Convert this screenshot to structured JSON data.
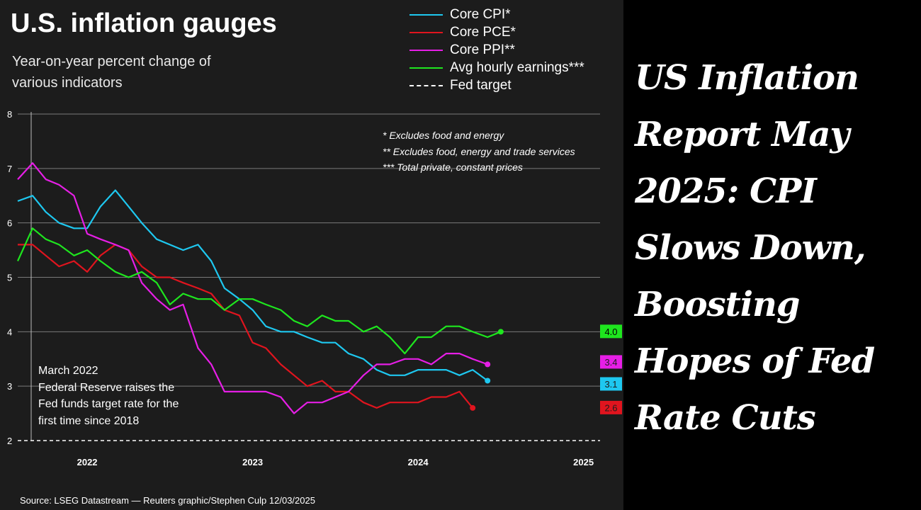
{
  "headline": "US Inflation Report May 2025: CPI Slows Down, Boosting Hopes of Fed Rate Cuts",
  "chart_data": {
    "type": "line",
    "title": "U.S. inflation gauges",
    "subtitle": "Year-on-year percent change of various indicators",
    "ylim": [
      2,
      8
    ],
    "yticks": [
      2,
      3,
      4,
      5,
      6,
      7,
      8
    ],
    "xlim": [
      2021.58,
      2025.1
    ],
    "xticks": [
      {
        "label": "2022",
        "value": 2022.0
      },
      {
        "label": "2023",
        "value": 2023.0
      },
      {
        "label": "2024",
        "value": 2024.0
      },
      {
        "label": "2025",
        "value": 2025.0
      }
    ],
    "grid": true,
    "legend_position": "top-right",
    "x": [
      2021.58,
      2021.67,
      2021.75,
      2021.83,
      2021.92,
      2022.0,
      2022.08,
      2022.17,
      2022.25,
      2022.33,
      2022.42,
      2022.5,
      2022.58,
      2022.67,
      2022.75,
      2022.83,
      2022.92,
      2023.0,
      2023.08,
      2023.17,
      2023.25,
      2023.33,
      2023.42,
      2023.5,
      2023.58,
      2023.67,
      2023.75,
      2023.83,
      2023.92,
      2024.0,
      2024.08,
      2024.17,
      2024.25,
      2024.33,
      2024.42,
      2024.5,
      2024.58,
      2024.67,
      2024.75,
      2024.83,
      2024.92
    ],
    "series": [
      {
        "name": "Core CPI*",
        "color": "#1ec8f0",
        "values": [
          6.4,
          6.5,
          6.2,
          6.0,
          5.9,
          5.9,
          6.3,
          6.6,
          6.3,
          6.0,
          5.7,
          5.6,
          5.5,
          5.6,
          5.3,
          4.8,
          4.6,
          4.4,
          4.1,
          4.0,
          4.0,
          3.9,
          3.8,
          3.8,
          3.6,
          3.5,
          3.3,
          3.2,
          3.2,
          3.3,
          3.3,
          3.3,
          3.2,
          3.3,
          3.1,
          null,
          null,
          null,
          null,
          null,
          null
        ],
        "end_label": "3.1"
      },
      {
        "name": "Core PCE*",
        "color": "#e0141e",
        "values": [
          5.6,
          5.6,
          5.4,
          5.2,
          5.3,
          5.1,
          5.4,
          5.6,
          5.5,
          5.2,
          5.0,
          5.0,
          4.9,
          4.8,
          4.7,
          4.4,
          4.3,
          3.8,
          3.7,
          3.4,
          3.2,
          3.0,
          3.1,
          2.9,
          2.9,
          2.7,
          2.6,
          2.7,
          2.7,
          2.7,
          2.8,
          2.8,
          2.9,
          2.6,
          null,
          null,
          null,
          null,
          null,
          null,
          null
        ],
        "end_label": "2.6"
      },
      {
        "name": "Core PPI**",
        "color": "#e61ee6",
        "values": [
          6.8,
          7.1,
          6.8,
          6.7,
          6.5,
          5.8,
          5.7,
          5.6,
          5.5,
          4.9,
          4.6,
          4.4,
          4.5,
          3.7,
          3.4,
          2.9,
          2.9,
          2.9,
          2.9,
          2.8,
          2.5,
          2.7,
          2.7,
          2.8,
          2.9,
          3.2,
          3.4,
          3.4,
          3.5,
          3.5,
          3.4,
          3.6,
          3.6,
          3.5,
          3.4,
          null,
          null,
          null,
          null,
          null,
          null
        ],
        "end_label": "3.4"
      },
      {
        "name": "Avg hourly earnings***",
        "color": "#1ee61e",
        "values": [
          5.3,
          5.9,
          5.7,
          5.6,
          5.4,
          5.5,
          5.3,
          5.1,
          5.0,
          5.1,
          4.9,
          4.5,
          4.7,
          4.6,
          4.6,
          4.4,
          4.6,
          4.6,
          4.5,
          4.4,
          4.2,
          4.1,
          4.3,
          4.2,
          4.2,
          4.0,
          4.1,
          3.9,
          3.6,
          3.9,
          3.9,
          4.1,
          4.1,
          4.0,
          3.9,
          4.0,
          null,
          null,
          null,
          null,
          null
        ],
        "end_label": "4.0"
      },
      {
        "name": "Fed target",
        "color": "#ffffff",
        "dashed": true,
        "values": [
          2,
          2,
          2,
          2,
          2,
          2,
          2,
          2,
          2,
          2,
          2,
          2,
          2,
          2,
          2,
          2,
          2,
          2,
          2,
          2,
          2,
          2,
          2,
          2,
          2,
          2,
          2,
          2,
          2,
          2,
          2,
          2,
          2,
          2,
          2,
          2,
          2,
          2,
          2,
          2,
          2
        ]
      }
    ],
    "notes": [
      "* Excludes food and energy",
      "** Excludes food, energy and trade services",
      "*** Total private, constant prices"
    ],
    "annotation": {
      "x": 2022.17,
      "lines": [
        "March 2022",
        "Federal Reserve raises the",
        "Fed funds target rate for the",
        "first time since 2018"
      ]
    },
    "source": "Source: LSEG Datastream — Reuters graphic/Stephen Culp 12/03/2025"
  }
}
